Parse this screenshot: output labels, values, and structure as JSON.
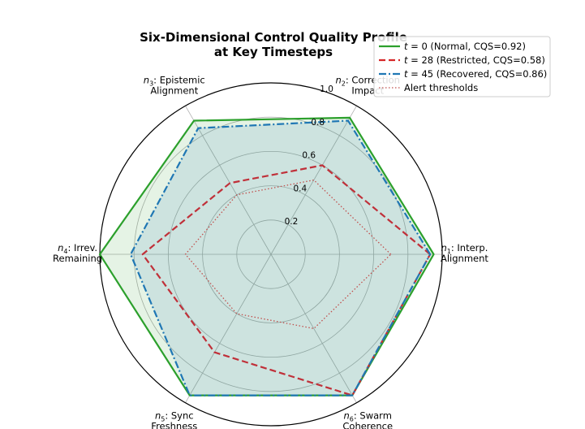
{
  "chart_data": {
    "type": "radar",
    "title": "Six-Dimensional Control Quality Profile\nat Key Timesteps",
    "axes": [
      {
        "sym": "n",
        "sub": "1",
        "label": "Interp.\nAlignment",
        "angle_deg": 0
      },
      {
        "sym": "n",
        "sub": "2",
        "label": "Correction\nImpact",
        "angle_deg": 60
      },
      {
        "sym": "n",
        "sub": "3",
        "label": "Epistemic\nAlignment",
        "angle_deg": 120
      },
      {
        "sym": "n",
        "sub": "4",
        "label": "Irrev.\nRemaining",
        "angle_deg": 180
      },
      {
        "sym": "n",
        "sub": "5",
        "label": "Sync\nFreshness",
        "angle_deg": 240
      },
      {
        "sym": "n",
        "sub": "6",
        "label": "Swarm\nCoherence",
        "angle_deg": 300
      }
    ],
    "rlim": [
      0,
      1.0
    ],
    "rticks": [
      0.2,
      0.4,
      0.6,
      0.8,
      1.0
    ],
    "rtick_labels": [
      "0.2",
      "0.4",
      "0.6",
      "0.8",
      "1.0"
    ],
    "grid": true,
    "legend_position": "top-right",
    "series": [
      {
        "name": "t = 0 (Normal, CQS=0.92)",
        "t": "0",
        "rest": " (Normal, CQS=0.92)",
        "color": "#2ca02c",
        "style": "solid",
        "fill": true,
        "values": [
          0.95,
          0.92,
          0.9,
          1.0,
          0.95,
          0.95
        ]
      },
      {
        "name": "t = 28 (Restricted, CQS=0.58)",
        "t": "28",
        "rest": " (Restricted, CQS=0.58)",
        "color": "#d62728",
        "style": "dashed",
        "fill": false,
        "values": [
          0.93,
          0.6,
          0.48,
          0.75,
          0.66,
          0.95
        ]
      },
      {
        "name": "t = 45 (Recovered, CQS=0.86)",
        "t": "45",
        "rest": " (Recovered, CQS=0.86)",
        "color": "#1f77b4",
        "style": "dashdot",
        "fill": true,
        "values": [
          0.93,
          0.9,
          0.85,
          0.82,
          0.95,
          0.95
        ]
      },
      {
        "name": "Alert thresholds",
        "color": "#c0504d",
        "style": "dotted",
        "fill": false,
        "values": [
          0.7,
          0.5,
          0.4,
          0.5,
          0.4,
          0.5
        ]
      }
    ]
  }
}
